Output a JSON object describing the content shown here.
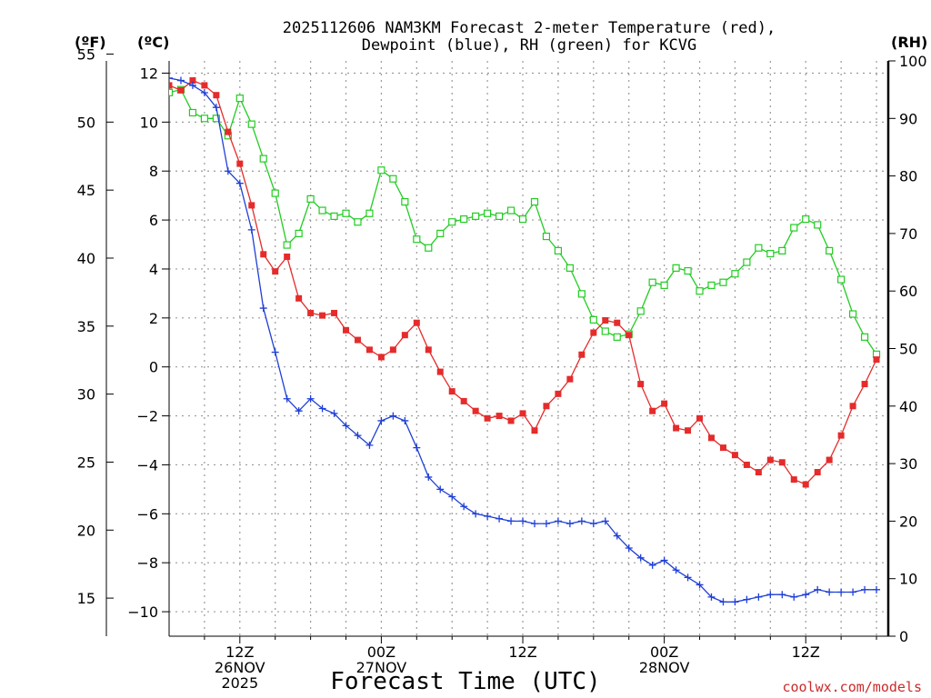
{
  "chart_data": {
    "type": "line",
    "title_line1": "2025112606 NAM3KM Forecast 2-meter Temperature (red),",
    "title_line2": "Dewpoint (blue), RH (green) for KCVG",
    "unit_f": "(ºF)",
    "unit_c": "(ºC)",
    "unit_rh": "(RH)",
    "xlabel": "Forecast Time (UTC)",
    "credit": "coolwx.com/models",
    "x_range_hours": [
      6,
      67
    ],
    "ylim_c": [
      -11,
      12.5
    ],
    "ylim_rh": [
      0,
      100
    ],
    "celsius_ticks": [
      {
        "v": 12,
        "label": "12"
      },
      {
        "v": 10,
        "label": "10"
      },
      {
        "v": 8,
        "label": "8"
      },
      {
        "v": 6,
        "label": "6"
      },
      {
        "v": 4,
        "label": "4"
      },
      {
        "v": 2,
        "label": "2"
      },
      {
        "v": 0,
        "label": "0"
      },
      {
        "v": -2,
        "label": "−2"
      },
      {
        "v": -4,
        "label": "−4"
      },
      {
        "v": -6,
        "label": "−6"
      },
      {
        "v": -8,
        "label": "−8"
      },
      {
        "v": -10,
        "label": "−10"
      }
    ],
    "fahrenheit_ticks": [
      {
        "v": 55,
        "label": "55"
      },
      {
        "v": 50,
        "label": "50"
      },
      {
        "v": 45,
        "label": "45"
      },
      {
        "v": 40,
        "label": "40"
      },
      {
        "v": 35,
        "label": "35"
      },
      {
        "v": 30,
        "label": "30"
      },
      {
        "v": 25,
        "label": "25"
      },
      {
        "v": 20,
        "label": "20"
      },
      {
        "v": 15,
        "label": "15"
      }
    ],
    "rh_ticks": [
      {
        "v": 100,
        "label": "100"
      },
      {
        "v": 90,
        "label": "90"
      },
      {
        "v": 80,
        "label": "80"
      },
      {
        "v": 70,
        "label": "70"
      },
      {
        "v": 60,
        "label": "60"
      },
      {
        "v": 50,
        "label": "50"
      },
      {
        "v": 40,
        "label": "40"
      },
      {
        "v": 30,
        "label": "30"
      },
      {
        "v": 20,
        "label": "20"
      },
      {
        "v": 10,
        "label": "10"
      },
      {
        "v": 0,
        "label": "0"
      }
    ],
    "x_ticks": [
      {
        "h": 12,
        "lines": [
          "12Z",
          "26NOV",
          "2025"
        ]
      },
      {
        "h": 24,
        "lines": [
          "00Z",
          "27NOV"
        ]
      },
      {
        "h": 36,
        "lines": [
          "12Z"
        ]
      },
      {
        "h": 48,
        "lines": [
          "00Z",
          "28NOV"
        ]
      },
      {
        "h": 60,
        "lines": [
          "12Z"
        ]
      }
    ],
    "x_minor_hours": [
      9,
      15,
      18,
      21,
      27,
      30,
      33,
      39,
      42,
      45,
      51,
      54,
      57,
      63,
      66
    ],
    "temperature_c": [
      [
        6,
        11.5
      ],
      [
        7,
        11.3
      ],
      [
        8,
        11.7
      ],
      [
        9,
        11.5
      ],
      [
        10,
        11.1
      ],
      [
        11,
        9.6
      ],
      [
        12,
        8.3
      ],
      [
        13,
        6.6
      ],
      [
        14,
        4.6
      ],
      [
        15,
        3.9
      ],
      [
        16,
        4.5
      ],
      [
        17,
        2.8
      ],
      [
        18,
        2.2
      ],
      [
        19,
        2.1
      ],
      [
        20,
        2.2
      ],
      [
        21,
        1.5
      ],
      [
        22,
        1.1
      ],
      [
        23,
        0.7
      ],
      [
        24,
        0.4
      ],
      [
        25,
        0.7
      ],
      [
        26,
        1.3
      ],
      [
        27,
        1.8
      ],
      [
        28,
        0.7
      ],
      [
        29,
        -0.2
      ],
      [
        30,
        -1.0
      ],
      [
        31,
        -1.4
      ],
      [
        32,
        -1.8
      ],
      [
        33,
        -2.1
      ],
      [
        34,
        -2.0
      ],
      [
        35,
        -2.2
      ],
      [
        36,
        -1.9
      ],
      [
        37,
        -2.6
      ],
      [
        38,
        -1.6
      ],
      [
        39,
        -1.1
      ],
      [
        40,
        -0.5
      ],
      [
        41,
        0.5
      ],
      [
        42,
        1.4
      ],
      [
        43,
        1.9
      ],
      [
        44,
        1.8
      ],
      [
        45,
        1.3
      ],
      [
        46,
        -0.7
      ],
      [
        47,
        -1.8
      ],
      [
        48,
        -1.5
      ],
      [
        49,
        -2.5
      ],
      [
        50,
        -2.6
      ],
      [
        51,
        -2.1
      ],
      [
        52,
        -2.9
      ],
      [
        53,
        -3.3
      ],
      [
        54,
        -3.6
      ],
      [
        55,
        -4.0
      ],
      [
        56,
        -4.3
      ],
      [
        57,
        -3.8
      ],
      [
        58,
        -3.9
      ],
      [
        59,
        -4.6
      ],
      [
        60,
        -4.8
      ],
      [
        61,
        -4.3
      ],
      [
        62,
        -3.8
      ],
      [
        63,
        -2.8
      ],
      [
        64,
        -1.6
      ],
      [
        65,
        -0.7
      ],
      [
        66,
        0.3
      ]
    ],
    "dewpoint_c": [
      [
        6,
        11.8
      ],
      [
        7,
        11.7
      ],
      [
        8,
        11.5
      ],
      [
        9,
        11.2
      ],
      [
        10,
        10.6
      ],
      [
        11,
        8.0
      ],
      [
        12,
        7.5
      ],
      [
        13,
        5.6
      ],
      [
        14,
        2.4
      ],
      [
        15,
        0.6
      ],
      [
        16,
        -1.3
      ],
      [
        17,
        -1.8
      ],
      [
        18,
        -1.3
      ],
      [
        19,
        -1.7
      ],
      [
        20,
        -1.9
      ],
      [
        21,
        -2.4
      ],
      [
        22,
        -2.8
      ],
      [
        23,
        -3.2
      ],
      [
        24,
        -2.2
      ],
      [
        25,
        -2.0
      ],
      [
        26,
        -2.2
      ],
      [
        27,
        -3.3
      ],
      [
        28,
        -4.5
      ],
      [
        29,
        -5.0
      ],
      [
        30,
        -5.3
      ],
      [
        31,
        -5.7
      ],
      [
        32,
        -6.0
      ],
      [
        33,
        -6.1
      ],
      [
        34,
        -6.2
      ],
      [
        35,
        -6.3
      ],
      [
        36,
        -6.3
      ],
      [
        37,
        -6.4
      ],
      [
        38,
        -6.4
      ],
      [
        39,
        -6.3
      ],
      [
        40,
        -6.4
      ],
      [
        41,
        -6.3
      ],
      [
        42,
        -6.4
      ],
      [
        43,
        -6.3
      ],
      [
        44,
        -6.9
      ],
      [
        45,
        -7.4
      ],
      [
        46,
        -7.8
      ],
      [
        47,
        -8.1
      ],
      [
        48,
        -7.9
      ],
      [
        49,
        -8.3
      ],
      [
        50,
        -8.6
      ],
      [
        51,
        -8.9
      ],
      [
        52,
        -9.4
      ],
      [
        53,
        -9.6
      ],
      [
        54,
        -9.6
      ],
      [
        55,
        -9.5
      ],
      [
        56,
        -9.4
      ],
      [
        57,
        -9.3
      ],
      [
        58,
        -9.3
      ],
      [
        59,
        -9.4
      ],
      [
        60,
        -9.3
      ],
      [
        61,
        -9.1
      ],
      [
        62,
        -9.2
      ],
      [
        63,
        -9.2
      ],
      [
        64,
        -9.2
      ],
      [
        65,
        -9.1
      ],
      [
        66,
        -9.1
      ]
    ],
    "rh_pct": [
      [
        6,
        94.5
      ],
      [
        7,
        95
      ],
      [
        8,
        91
      ],
      [
        9,
        90
      ],
      [
        10,
        90
      ],
      [
        11,
        87
      ],
      [
        12,
        93.5
      ],
      [
        13,
        89
      ],
      [
        14,
        83
      ],
      [
        15,
        77
      ],
      [
        16,
        68
      ],
      [
        17,
        70
      ],
      [
        18,
        76
      ],
      [
        19,
        74
      ],
      [
        20,
        73
      ],
      [
        21,
        73.5
      ],
      [
        22,
        72
      ],
      [
        23,
        73.5
      ],
      [
        24,
        81
      ],
      [
        25,
        79.5
      ],
      [
        26,
        75.5
      ],
      [
        27,
        69
      ],
      [
        28,
        67.5
      ],
      [
        29,
        70
      ],
      [
        30,
        72
      ],
      [
        31,
        72.5
      ],
      [
        32,
        73
      ],
      [
        33,
        73.5
      ],
      [
        34,
        73
      ],
      [
        35,
        74
      ],
      [
        36,
        72.5
      ],
      [
        37,
        75.5
      ],
      [
        38,
        69.5
      ],
      [
        39,
        67
      ],
      [
        40,
        64
      ],
      [
        41,
        59.5
      ],
      [
        42,
        55
      ],
      [
        43,
        53
      ],
      [
        44,
        52
      ],
      [
        45,
        52.5
      ],
      [
        46,
        56.5
      ],
      [
        47,
        61.5
      ],
      [
        48,
        61
      ],
      [
        49,
        64
      ],
      [
        50,
        63.5
      ],
      [
        51,
        60
      ],
      [
        52,
        61
      ],
      [
        53,
        61.5
      ],
      [
        54,
        63
      ],
      [
        55,
        65
      ],
      [
        56,
        67.5
      ],
      [
        57,
        66.5
      ],
      [
        58,
        67
      ],
      [
        59,
        71
      ],
      [
        60,
        72.5
      ],
      [
        61,
        71.5
      ],
      [
        62,
        67
      ],
      [
        63,
        62
      ],
      [
        64,
        56
      ],
      [
        65,
        52
      ],
      [
        66,
        49
      ]
    ],
    "colors": {
      "temperature": "#e52b2b",
      "dewpoint": "#1f3fd6",
      "rh": "#22cc22",
      "grid": "#9a9a9a",
      "axis": "#000000",
      "credit": "#cc2a2a"
    }
  }
}
